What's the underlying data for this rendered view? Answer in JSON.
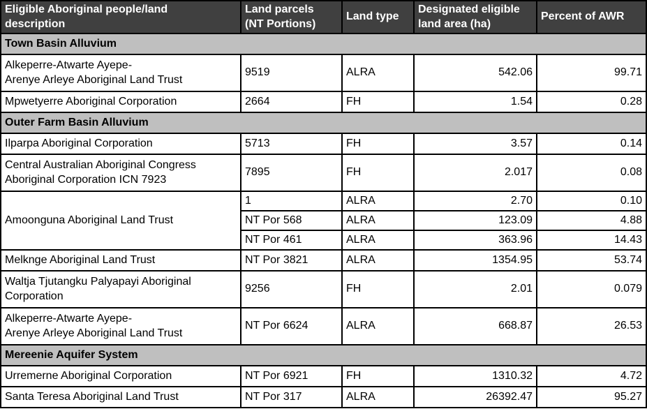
{
  "table": {
    "colors": {
      "header_bg": "#404040",
      "header_text": "#FFFFFF",
      "section_bg": "#BFBFBF",
      "border": "#000000",
      "row_bg": "#FFFFFF"
    },
    "columns": [
      {
        "label": "Eligible Aboriginal people/land\ndescription"
      },
      {
        "label": "Land parcels\n(NT Portions)"
      },
      {
        "label": "Land type"
      },
      {
        "label": "Designated eligible\nland area (ha)"
      },
      {
        "label": "Percent of AWR"
      }
    ],
    "sections": [
      {
        "title": "Town Basin Alluvium",
        "rows": [
          {
            "description": "Alkeperre-Atwarte Ayepe-\nArenye Arleye Aboriginal Land Trust",
            "entries": [
              {
                "parcel": "9519",
                "type": "ALRA",
                "area": "542.06",
                "percent": "99.71"
              }
            ]
          },
          {
            "description": "Mpwetyerre Aboriginal Corporation",
            "entries": [
              {
                "parcel": "2664",
                "type": "FH",
                "area": "1.54",
                "percent": "0.28"
              }
            ]
          }
        ]
      },
      {
        "title": "Outer Farm Basin Alluvium",
        "rows": [
          {
            "description": "Ilparpa Aboriginal Corporation",
            "entries": [
              {
                "parcel": "5713",
                "type": "FH",
                "area": "3.57",
                "percent": "0.14"
              }
            ]
          },
          {
            "description": "Central Australian Aboriginal Congress\nAboriginal Corporation ICN 7923",
            "entries": [
              {
                "parcel": "7895",
                "type": "FH",
                "area": "2.017",
                "percent": "0.08"
              }
            ]
          },
          {
            "description": "Amoonguna Aboriginal Land Trust",
            "entries": [
              {
                "parcel": "1",
                "type": "ALRA",
                "area": "2.70",
                "percent": "0.10"
              },
              {
                "parcel": "NT Por 568",
                "type": "ALRA",
                "area": "123.09",
                "percent": "4.88"
              },
              {
                "parcel": "NT Por 461",
                "type": "ALRA",
                "area": "363.96",
                "percent": "14.43"
              }
            ]
          },
          {
            "description": "Melknge Aboriginal Land Trust",
            "entries": [
              {
                "parcel": "NT Por 3821",
                "type": "ALRA",
                "area": "1354.95",
                "percent": "53.74"
              }
            ]
          },
          {
            "description": "Waltja Tjutangku Palyapayi Aboriginal\nCorporation",
            "entries": [
              {
                "parcel": "9256",
                "type": "FH",
                "area": "2.01",
                "percent": "0.079"
              }
            ]
          },
          {
            "description": "Alkeperre-Atwarte Ayepe-\nArenye Arleye Aboriginal Land Trust",
            "entries": [
              {
                "parcel": "NT Por 6624",
                "type": "ALRA",
                "area": "668.87",
                "percent": "26.53"
              }
            ]
          }
        ]
      },
      {
        "title": "Mereenie Aquifer System",
        "rows": [
          {
            "description": "Urremerne Aboriginal Corporation",
            "entries": [
              {
                "parcel": "NT Por 6921",
                "type": "FH",
                "area": "1310.32",
                "percent": "4.72"
              }
            ]
          },
          {
            "description": "Santa Teresa Aboriginal Land Trust",
            "entries": [
              {
                "parcel": "NT Por 317",
                "type": "ALRA",
                "area": "26392.47",
                "percent": "95.27"
              }
            ]
          }
        ]
      }
    ]
  }
}
